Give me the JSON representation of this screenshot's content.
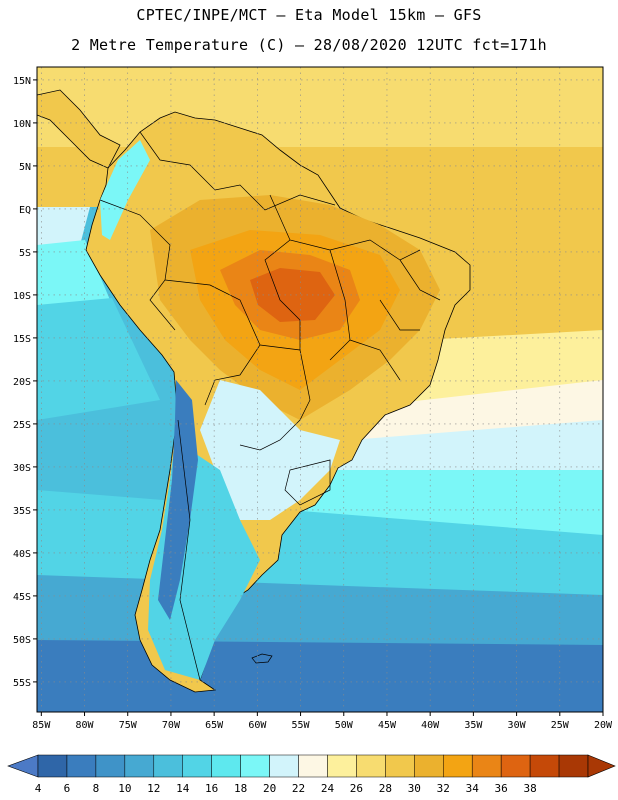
{
  "header": {
    "line1": "CPTEC/INPE/MCT –  Eta Model 15km – GFS",
    "line2": "2 Metre Temperature (C) – 28/08/2020 12UTC fct=171h"
  },
  "map": {
    "lat_labels": [
      "15N",
      "10N",
      "5N",
      "EQ",
      "5S",
      "10S",
      "15S",
      "20S",
      "25S",
      "30S",
      "35S",
      "40S",
      "45S",
      "50S",
      "55S"
    ],
    "lat_values": [
      15,
      10,
      5,
      0,
      -5,
      -10,
      -15,
      -20,
      -25,
      -30,
      -35,
      -40,
      -45,
      -50,
      -55
    ],
    "lon_labels": [
      "85W",
      "80W",
      "75W",
      "70W",
      "65W",
      "60W",
      "55W",
      "50W",
      "45W",
      "40W",
      "35W",
      "30W",
      "25W",
      "20W"
    ],
    "lon_values": [
      -85,
      -80,
      -75,
      -70,
      -65,
      -60,
      -55,
      -50,
      -45,
      -40,
      -35,
      -30,
      -25,
      -20
    ],
    "extent": {
      "lon_min": -85.5,
      "lon_max": -20,
      "lat_min": -58.5,
      "lat_max": 16.5
    }
  },
  "colorbar": {
    "labels": [
      "4",
      "6",
      "8",
      "10",
      "12",
      "14",
      "16",
      "18",
      "20",
      "22",
      "24",
      "26",
      "28",
      "30",
      "32",
      "34",
      "36",
      "38"
    ],
    "colors": [
      "#2f66a8",
      "#3a7dbe",
      "#3f93c8",
      "#46a9d2",
      "#4bbfdc",
      "#52d4e6",
      "#5ee8ee",
      "#7bf7f7",
      "#d2f4fb",
      "#fdf7e4",
      "#fdf09c",
      "#f7dc70",
      "#f1c84c",
      "#ebb12e",
      "#f3a413",
      "#ea8516",
      "#de6411",
      "#c54908",
      "#a93805"
    ],
    "under_color": "#4c7ac6",
    "over_color": "#a93805"
  }
}
